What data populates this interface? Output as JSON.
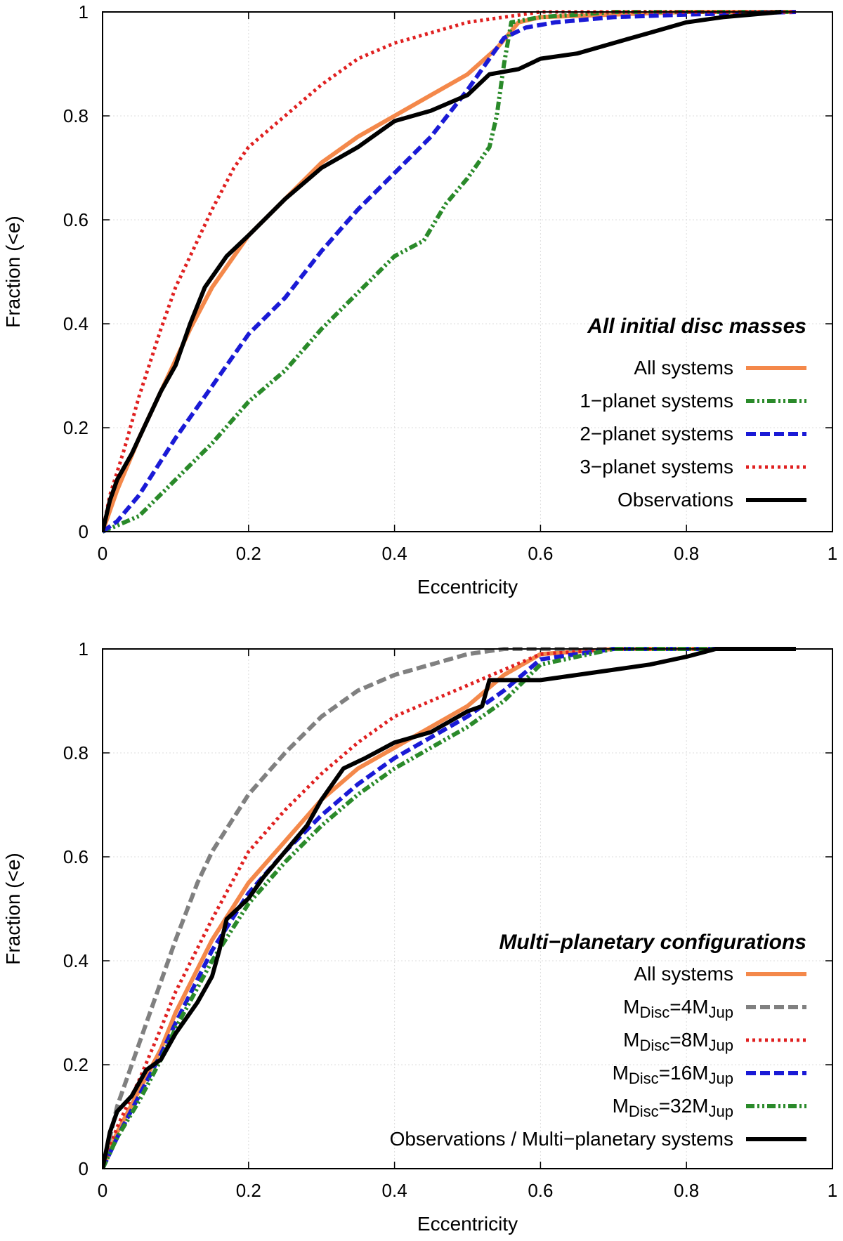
{
  "chart_data": [
    {
      "type": "line",
      "title": "",
      "xlabel": "Eccentricity",
      "ylabel": "Fraction (<e)",
      "xlim": [
        0,
        1
      ],
      "ylim": [
        0,
        1
      ],
      "grid": true,
      "xticks": [
        "0",
        "0.2",
        "0.4",
        "0.6",
        "0.8",
        "1"
      ],
      "yticks": [
        "0",
        "0.2",
        "0.4",
        "0.6",
        "0.8",
        "1"
      ],
      "legend_title": "All initial disc masses",
      "legend_position": "lower-right",
      "series": [
        {
          "name": "All systems",
          "color": "#f4884a",
          "dash": "solid",
          "points": [
            [
              0,
              0
            ],
            [
              0.02,
              0.08
            ],
            [
              0.05,
              0.18
            ],
            [
              0.08,
              0.27
            ],
            [
              0.1,
              0.33
            ],
            [
              0.12,
              0.39
            ],
            [
              0.15,
              0.47
            ],
            [
              0.2,
              0.57
            ],
            [
              0.25,
              0.64
            ],
            [
              0.3,
              0.71
            ],
            [
              0.35,
              0.76
            ],
            [
              0.4,
              0.8
            ],
            [
              0.45,
              0.84
            ],
            [
              0.5,
              0.88
            ],
            [
              0.54,
              0.93
            ],
            [
              0.57,
              0.98
            ],
            [
              0.6,
              0.99
            ],
            [
              0.7,
              0.995
            ],
            [
              0.8,
              1
            ],
            [
              0.95,
              1
            ]
          ]
        },
        {
          "name": "1−planet systems",
          "color": "#2a8a2a",
          "dash": "dashdot",
          "points": [
            [
              0,
              0
            ],
            [
              0.05,
              0.03
            ],
            [
              0.1,
              0.1
            ],
            [
              0.15,
              0.17
            ],
            [
              0.2,
              0.25
            ],
            [
              0.25,
              0.31
            ],
            [
              0.3,
              0.39
            ],
            [
              0.35,
              0.46
            ],
            [
              0.4,
              0.53
            ],
            [
              0.44,
              0.56
            ],
            [
              0.47,
              0.63
            ],
            [
              0.5,
              0.68
            ],
            [
              0.53,
              0.74
            ],
            [
              0.54,
              0.8
            ],
            [
              0.55,
              0.9
            ],
            [
              0.56,
              0.98
            ],
            [
              0.6,
              0.99
            ],
            [
              0.7,
              1
            ],
            [
              0.95,
              1
            ]
          ]
        },
        {
          "name": "2−planet systems",
          "color": "#1a1ad6",
          "dash": "dashed",
          "points": [
            [
              0,
              0
            ],
            [
              0.02,
              0.02
            ],
            [
              0.05,
              0.07
            ],
            [
              0.1,
              0.18
            ],
            [
              0.15,
              0.28
            ],
            [
              0.2,
              0.38
            ],
            [
              0.25,
              0.45
            ],
            [
              0.3,
              0.54
            ],
            [
              0.35,
              0.62
            ],
            [
              0.4,
              0.69
            ],
            [
              0.45,
              0.76
            ],
            [
              0.5,
              0.85
            ],
            [
              0.53,
              0.91
            ],
            [
              0.55,
              0.95
            ],
            [
              0.58,
              0.97
            ],
            [
              0.62,
              0.98
            ],
            [
              0.7,
              0.99
            ],
            [
              0.8,
              0.995
            ],
            [
              0.95,
              1
            ]
          ]
        },
        {
          "name": "3−planet systems",
          "color": "#e02020",
          "dash": "dotted",
          "points": [
            [
              0,
              0
            ],
            [
              0.01,
              0.07
            ],
            [
              0.03,
              0.16
            ],
            [
              0.05,
              0.26
            ],
            [
              0.08,
              0.39
            ],
            [
              0.1,
              0.47
            ],
            [
              0.12,
              0.53
            ],
            [
              0.15,
              0.62
            ],
            [
              0.18,
              0.7
            ],
            [
              0.2,
              0.74
            ],
            [
              0.25,
              0.8
            ],
            [
              0.3,
              0.86
            ],
            [
              0.35,
              0.91
            ],
            [
              0.4,
              0.94
            ],
            [
              0.45,
              0.96
            ],
            [
              0.5,
              0.98
            ],
            [
              0.55,
              0.99
            ],
            [
              0.6,
              1
            ],
            [
              0.95,
              1
            ]
          ]
        },
        {
          "name": "Observations",
          "color": "#000000",
          "dash": "solid",
          "points": [
            [
              0,
              0
            ],
            [
              0.01,
              0.06
            ],
            [
              0.02,
              0.1
            ],
            [
              0.04,
              0.15
            ],
            [
              0.06,
              0.21
            ],
            [
              0.08,
              0.27
            ],
            [
              0.1,
              0.32
            ],
            [
              0.12,
              0.4
            ],
            [
              0.14,
              0.47
            ],
            [
              0.17,
              0.53
            ],
            [
              0.2,
              0.57
            ],
            [
              0.25,
              0.64
            ],
            [
              0.3,
              0.7
            ],
            [
              0.35,
              0.74
            ],
            [
              0.38,
              0.77
            ],
            [
              0.4,
              0.79
            ],
            [
              0.45,
              0.81
            ],
            [
              0.5,
              0.84
            ],
            [
              0.53,
              0.88
            ],
            [
              0.57,
              0.89
            ],
            [
              0.6,
              0.91
            ],
            [
              0.65,
              0.92
            ],
            [
              0.7,
              0.94
            ],
            [
              0.75,
              0.96
            ],
            [
              0.8,
              0.98
            ],
            [
              0.85,
              0.99
            ],
            [
              0.93,
              1
            ]
          ]
        }
      ]
    },
    {
      "type": "line",
      "title": "",
      "xlabel": "Eccentricity",
      "ylabel": "Fraction (<e)",
      "xlim": [
        0,
        1
      ],
      "ylim": [
        0,
        1
      ],
      "grid": true,
      "xticks": [
        "0",
        "0.2",
        "0.4",
        "0.6",
        "0.8",
        "1"
      ],
      "yticks": [
        "0",
        "0.2",
        "0.4",
        "0.6",
        "0.8",
        "1"
      ],
      "legend_title": "Multi−planetary configurations",
      "legend_position": "lower-right",
      "series": [
        {
          "name": "All systems",
          "color": "#f4884a",
          "dash": "solid",
          "points": [
            [
              0,
              0
            ],
            [
              0.02,
              0.07
            ],
            [
              0.05,
              0.15
            ],
            [
              0.08,
              0.23
            ],
            [
              0.1,
              0.3
            ],
            [
              0.15,
              0.44
            ],
            [
              0.2,
              0.55
            ],
            [
              0.25,
              0.63
            ],
            [
              0.3,
              0.71
            ],
            [
              0.35,
              0.77
            ],
            [
              0.4,
              0.81
            ],
            [
              0.45,
              0.85
            ],
            [
              0.5,
              0.89
            ],
            [
              0.55,
              0.95
            ],
            [
              0.6,
              0.99
            ],
            [
              0.7,
              1
            ],
            [
              0.95,
              1
            ]
          ]
        },
        {
          "label_parts": [
            "M",
            "Disc",
            "=4M",
            "Jup"
          ],
          "name": "MDisc=4MJup",
          "color": "#808080",
          "dash": "dashed",
          "points": [
            [
              0,
              0
            ],
            [
              0.02,
              0.12
            ],
            [
              0.05,
              0.24
            ],
            [
              0.08,
              0.36
            ],
            [
              0.1,
              0.44
            ],
            [
              0.13,
              0.55
            ],
            [
              0.15,
              0.61
            ],
            [
              0.2,
              0.72
            ],
            [
              0.25,
              0.8
            ],
            [
              0.3,
              0.87
            ],
            [
              0.35,
              0.92
            ],
            [
              0.4,
              0.95
            ],
            [
              0.45,
              0.97
            ],
            [
              0.5,
              0.99
            ],
            [
              0.55,
              1
            ],
            [
              0.95,
              1
            ]
          ]
        },
        {
          "label_parts": [
            "M",
            "Disc",
            "=8M",
            "Jup"
          ],
          "name": "MDisc=8MJup",
          "color": "#e02020",
          "dash": "dotted",
          "points": [
            [
              0,
              0
            ],
            [
              0.02,
              0.08
            ],
            [
              0.05,
              0.17
            ],
            [
              0.08,
              0.27
            ],
            [
              0.1,
              0.34
            ],
            [
              0.15,
              0.48
            ],
            [
              0.2,
              0.61
            ],
            [
              0.25,
              0.69
            ],
            [
              0.3,
              0.76
            ],
            [
              0.35,
              0.82
            ],
            [
              0.4,
              0.87
            ],
            [
              0.45,
              0.9
            ],
            [
              0.5,
              0.93
            ],
            [
              0.55,
              0.96
            ],
            [
              0.6,
              0.99
            ],
            [
              0.7,
              1
            ],
            [
              0.95,
              1
            ]
          ]
        },
        {
          "label_parts": [
            "M",
            "Disc",
            "=16M",
            "Jup"
          ],
          "name": "MDisc=16MJup",
          "color": "#1a1ad6",
          "dash": "dashed",
          "points": [
            [
              0,
              0
            ],
            [
              0.02,
              0.06
            ],
            [
              0.05,
              0.14
            ],
            [
              0.08,
              0.22
            ],
            [
              0.1,
              0.28
            ],
            [
              0.15,
              0.42
            ],
            [
              0.2,
              0.53
            ],
            [
              0.25,
              0.61
            ],
            [
              0.3,
              0.68
            ],
            [
              0.35,
              0.74
            ],
            [
              0.4,
              0.79
            ],
            [
              0.45,
              0.83
            ],
            [
              0.5,
              0.87
            ],
            [
              0.55,
              0.92
            ],
            [
              0.6,
              0.98
            ],
            [
              0.7,
              1
            ],
            [
              0.95,
              1
            ]
          ]
        },
        {
          "label_parts": [
            "M",
            "Disc",
            "=32M",
            "Jup"
          ],
          "name": "MDisc=32MJup",
          "color": "#2a8a2a",
          "dash": "dashdot",
          "points": [
            [
              0,
              0
            ],
            [
              0.02,
              0.06
            ],
            [
              0.05,
              0.13
            ],
            [
              0.08,
              0.21
            ],
            [
              0.1,
              0.27
            ],
            [
              0.15,
              0.4
            ],
            [
              0.2,
              0.51
            ],
            [
              0.25,
              0.59
            ],
            [
              0.3,
              0.66
            ],
            [
              0.35,
              0.72
            ],
            [
              0.4,
              0.77
            ],
            [
              0.45,
              0.81
            ],
            [
              0.5,
              0.85
            ],
            [
              0.55,
              0.9
            ],
            [
              0.6,
              0.97
            ],
            [
              0.7,
              1
            ],
            [
              0.95,
              1
            ]
          ]
        },
        {
          "name": "Observations / Multi−planetary systems",
          "color": "#000000",
          "dash": "solid",
          "points": [
            [
              0,
              0
            ],
            [
              0.01,
              0.07
            ],
            [
              0.02,
              0.11
            ],
            [
              0.04,
              0.14
            ],
            [
              0.06,
              0.19
            ],
            [
              0.08,
              0.21
            ],
            [
              0.1,
              0.26
            ],
            [
              0.13,
              0.32
            ],
            [
              0.15,
              0.37
            ],
            [
              0.16,
              0.42
            ],
            [
              0.17,
              0.48
            ],
            [
              0.2,
              0.52
            ],
            [
              0.22,
              0.56
            ],
            [
              0.25,
              0.61
            ],
            [
              0.28,
              0.66
            ],
            [
              0.3,
              0.71
            ],
            [
              0.33,
              0.77
            ],
            [
              0.36,
              0.79
            ],
            [
              0.4,
              0.82
            ],
            [
              0.45,
              0.84
            ],
            [
              0.5,
              0.88
            ],
            [
              0.52,
              0.89
            ],
            [
              0.53,
              0.94
            ],
            [
              0.6,
              0.94
            ],
            [
              0.65,
              0.95
            ],
            [
              0.7,
              0.96
            ],
            [
              0.75,
              0.97
            ],
            [
              0.8,
              0.985
            ],
            [
              0.84,
              1
            ],
            [
              0.95,
              1
            ]
          ]
        }
      ]
    }
  ]
}
